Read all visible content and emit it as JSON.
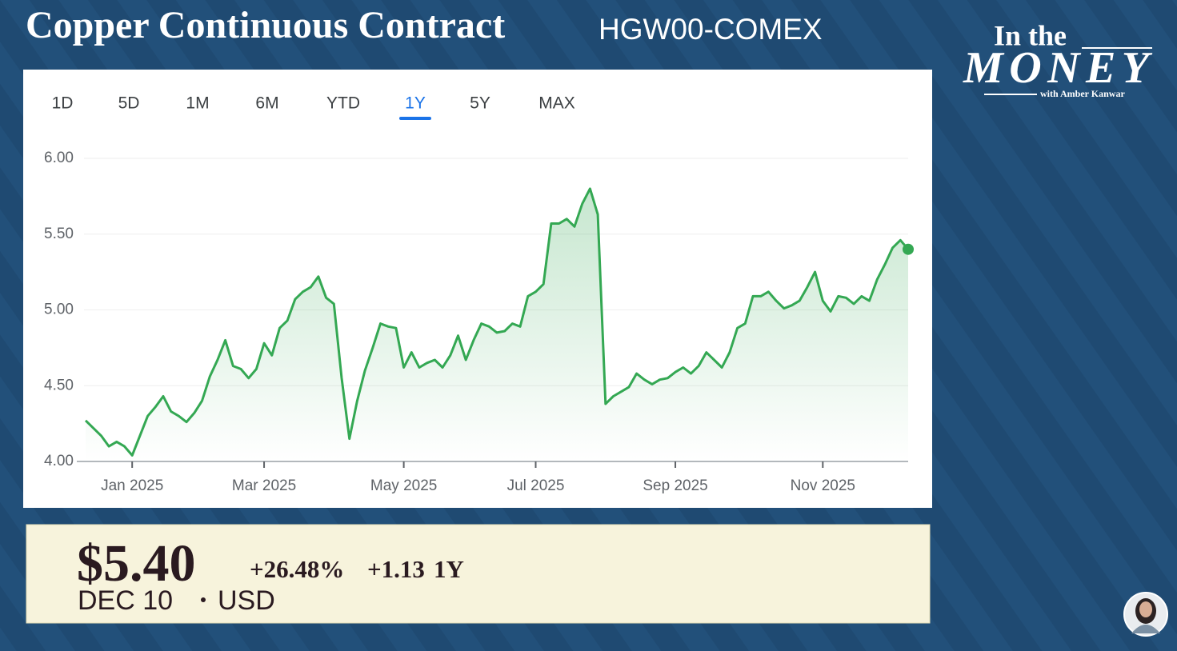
{
  "chart_data": {
    "type": "line",
    "title": "Copper Continuous Contract",
    "ticker": "HGW00-COMEX",
    "ranges": [
      "1D",
      "5D",
      "1M",
      "6M",
      "YTD",
      "1Y",
      "5Y",
      "MAX"
    ],
    "selected_range": "1Y",
    "categories": [
      null,
      null,
      null,
      null,
      null,
      null,
      "Jan 2025",
      null,
      null,
      null,
      null,
      null,
      null,
      null,
      null,
      null,
      null,
      null,
      null,
      null,
      null,
      null,
      null,
      "Mar 2025",
      null,
      null,
      null,
      null,
      null,
      null,
      null,
      null,
      null,
      null,
      null,
      null,
      null,
      null,
      null,
      null,
      null,
      "May 2025",
      null,
      null,
      null,
      null,
      null,
      null,
      null,
      null,
      null,
      null,
      null,
      null,
      null,
      null,
      null,
      null,
      "Jul 2025",
      null,
      null,
      null,
      null,
      null,
      null,
      null,
      null,
      null,
      null,
      null,
      null,
      null,
      null,
      null,
      null,
      null,
      "Sep 2025",
      null,
      null,
      null,
      null,
      null,
      null,
      null,
      null,
      null,
      null,
      null,
      null,
      null,
      null,
      null,
      null,
      null,
      null,
      "Nov 2025",
      null,
      null,
      null,
      null,
      null,
      null,
      null,
      null,
      null,
      null,
      null
    ],
    "values": [
      4.27,
      4.22,
      4.17,
      4.1,
      4.13,
      4.1,
      4.04,
      4.17,
      4.3,
      4.36,
      4.43,
      4.33,
      4.3,
      4.26,
      4.32,
      4.4,
      4.56,
      4.67,
      4.8,
      4.63,
      4.61,
      4.55,
      4.61,
      4.78,
      4.7,
      4.88,
      4.93,
      5.07,
      5.12,
      5.15,
      5.22,
      5.08,
      5.04,
      4.55,
      4.15,
      4.4,
      4.6,
      4.75,
      4.91,
      4.89,
      4.88,
      4.62,
      4.72,
      4.62,
      4.65,
      4.67,
      4.62,
      4.7,
      4.83,
      4.67,
      4.8,
      4.91,
      4.89,
      4.85,
      4.86,
      4.91,
      4.89,
      5.09,
      5.12,
      5.17,
      5.57,
      5.57,
      5.6,
      5.55,
      5.7,
      5.8,
      5.63,
      4.38,
      4.43,
      4.46,
      4.49,
      4.58,
      4.54,
      4.51,
      4.54,
      4.55,
      4.59,
      4.62,
      4.58,
      4.63,
      4.72,
      4.67,
      4.62,
      4.72,
      4.88,
      4.91,
      5.09,
      5.09,
      5.12,
      5.06,
      5.01,
      5.03,
      5.06,
      5.15,
      5.25,
      5.06,
      4.99,
      5.09,
      5.08,
      5.04,
      5.09,
      5.06,
      5.2,
      5.3,
      5.41,
      5.46,
      5.4
    ],
    "color": "#34a853",
    "ylim": [
      4.0,
      6.0
    ],
    "yticks": [
      {
        "value": 4,
        "label": "4.00"
      },
      {
        "value": 4.5,
        "label": "4.50"
      },
      {
        "value": 5,
        "label": "5.00"
      },
      {
        "value": 5.5,
        "label": "5.50"
      },
      {
        "value": 6,
        "label": "6.00"
      }
    ],
    "grid": true,
    "quote": {
      "price": "$5.40",
      "change_pct": "+26.48%",
      "change": "+1.13",
      "period": "1Y",
      "date": "DEC 10",
      "currency": "USD"
    }
  },
  "branding": {
    "line1": "In the",
    "line2": "MONEY",
    "line3": "with Amber Kanwar"
  }
}
